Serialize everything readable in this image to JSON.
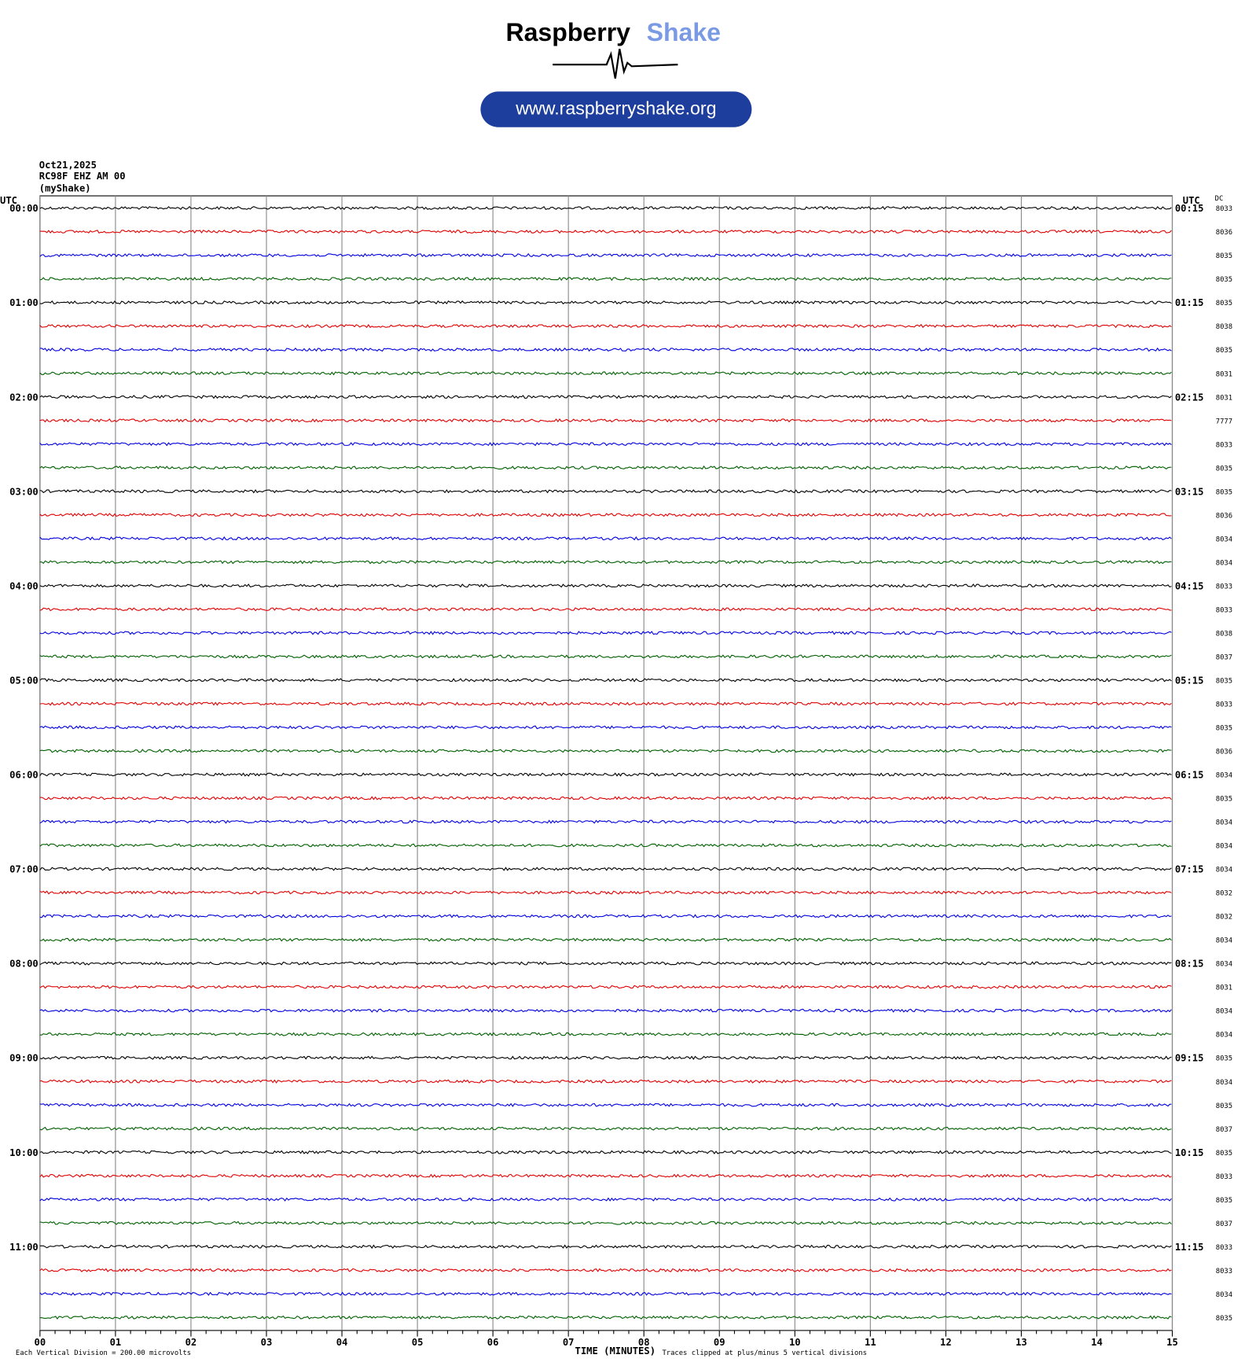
{
  "header": {
    "brand_dark": "Raspberry",
    "brand_light": "Shake",
    "url": "www.raspberryshake.org"
  },
  "chart_data": {
    "type": "helicorder",
    "date": "Oct21,2025",
    "station": "RC98F EHZ AM 00",
    "source": "(myShake)",
    "left_label": "UTC",
    "right_label": "UTC",
    "dc_label": "DC",
    "hour_labels": [
      "00:00",
      "01:00",
      "02:00",
      "03:00",
      "04:00",
      "05:00",
      "06:00",
      "07:00",
      "08:00",
      "09:00",
      "10:00",
      "11:00"
    ],
    "end_labels": [
      "00:15",
      "01:15",
      "02:15",
      "03:15",
      "04:15",
      "05:15",
      "06:15",
      "07:15",
      "08:15",
      "09:15",
      "10:15",
      "11:15"
    ],
    "dc_values": [
      "8033",
      "8036",
      "8035",
      "8035",
      "8035",
      "8038",
      "8035",
      "8031",
      "8031",
      "7777",
      "8033",
      "8035",
      "8035",
      "8036",
      "8034",
      "8034",
      "8033",
      "8033",
      "8038",
      "8037",
      "8035",
      "8033",
      "8035",
      "8036",
      "8034",
      "8035",
      "8034",
      "8034",
      "8034",
      "8032",
      "8032",
      "8034",
      "8034",
      "8031",
      "8034",
      "8034",
      "8035",
      "8034",
      "8035",
      "8037",
      "8035",
      "8033",
      "8035",
      "8037",
      "8033",
      "8033",
      "8034",
      "8035"
    ],
    "trace_colors": [
      "#000000",
      "#e00000",
      "#0000e0",
      "#006000"
    ],
    "xlim": [
      0,
      15
    ],
    "xticks": [
      {
        "value": 0,
        "label": "00"
      },
      {
        "value": 1,
        "label": "01"
      },
      {
        "value": 2,
        "label": "02"
      },
      {
        "value": 3,
        "label": "03"
      },
      {
        "value": 4,
        "label": "04"
      },
      {
        "value": 5,
        "label": "05"
      },
      {
        "value": 6,
        "label": "06"
      },
      {
        "value": 7,
        "label": "07"
      },
      {
        "value": 8,
        "label": "08"
      },
      {
        "value": 9,
        "label": "09"
      },
      {
        "value": 10,
        "label": "10"
      },
      {
        "value": 11,
        "label": "11"
      },
      {
        "value": 12,
        "label": "12"
      },
      {
        "value": 13,
        "label": "13"
      },
      {
        "value": 14,
        "label": "14"
      },
      {
        "value": 15,
        "label": "15"
      }
    ],
    "x_axis_label": "TIME (MINUTES)",
    "scale_note": "Each Vertical Division =  200.00 microvolts",
    "clip_note": "Traces clipped at plus/minus 5 vertical divisions",
    "grid": true
  }
}
